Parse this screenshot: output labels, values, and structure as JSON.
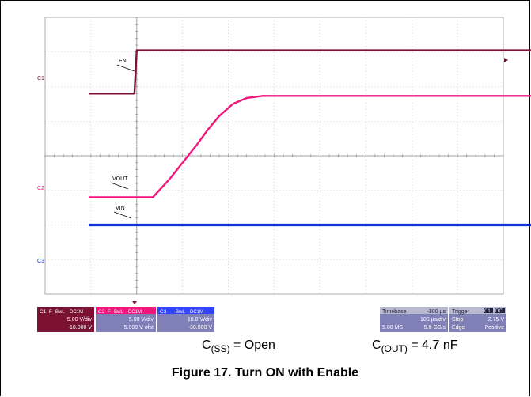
{
  "chart_data": {
    "type": "line",
    "title": "Figure 17. Turn ON with Enable",
    "x": {
      "label": "",
      "unit": "µs",
      "divisions": 10,
      "per_div": 100,
      "trigger_offset_div": -1
    },
    "series": [
      {
        "name": "EN",
        "channel": "C1",
        "color": "#7b1233",
        "points": [
          [
            -1.05,
            1.8
          ],
          [
            -0.05,
            1.8
          ],
          [
            0.0,
            3.05
          ],
          [
            10.05,
            3.05
          ]
        ]
      },
      {
        "name": "VOUT",
        "channel": "C2",
        "color": "#f0167c",
        "points": [
          [
            -1.05,
            -1.2
          ],
          [
            0.35,
            -1.2
          ],
          [
            0.7,
            -0.7
          ],
          [
            1.0,
            -0.2
          ],
          [
            1.3,
            0.3
          ],
          [
            1.55,
            0.75
          ],
          [
            1.8,
            1.15
          ],
          [
            2.1,
            1.5
          ],
          [
            2.4,
            1.67
          ],
          [
            2.75,
            1.73
          ],
          [
            10.05,
            1.73
          ]
        ]
      },
      {
        "name": "VIN",
        "channel": "C3",
        "color": "#1133dd",
        "points": [
          [
            -1.05,
            -2.0
          ],
          [
            10.05,
            -2.0
          ]
        ]
      }
    ],
    "grid": true
  },
  "markers": {
    "c1": "C1",
    "c2": "C2",
    "c3": "C3"
  },
  "channels": [
    {
      "id": "C1",
      "label": "C1",
      "tags": [
        "F",
        "BwL",
        "DC1M"
      ],
      "scale": "5.00 V/div",
      "offset": "-10.000 V",
      "color": "#7b1233"
    },
    {
      "id": "C2",
      "label": "C2",
      "tags": [
        "F",
        "BwL",
        "DC1M"
      ],
      "scale": "5.00 V/div",
      "offset": "-5.000 V ofst",
      "color": "#f0167c"
    },
    {
      "id": "C3",
      "label": "C3",
      "tags": [
        "BwL",
        "DC1M"
      ],
      "scale": "10.0 V/div",
      "offset": "-30.000 V",
      "color": "#3344ff"
    }
  ],
  "timebase": {
    "label": "Timebase",
    "offset": "-300 µs",
    "per_div": "100 µs/div",
    "samples": "5.00 MS",
    "rate": "5.0 GS/s"
  },
  "trigger": {
    "label": "Trigger",
    "channel": "C1",
    "coupling": "DC",
    "mode": "Stop",
    "level": "2.75 V",
    "type": "Edge",
    "slope": "Positive"
  },
  "captions": {
    "css_main": "C",
    "css_sub": "(SS)",
    "css_rest": " = Open",
    "cout_main": "C",
    "cout_sub": "(OUT)",
    "cout_rest": " = 4.7 nF"
  },
  "figure_caption": "Figure 17. Turn ON with Enable"
}
